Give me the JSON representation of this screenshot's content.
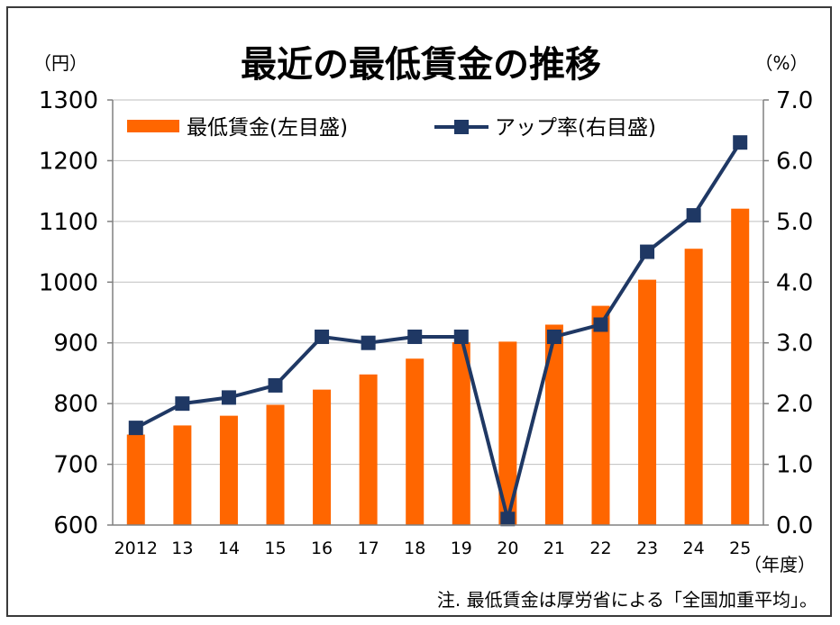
{
  "chart_data": {
    "type": "bar+line",
    "title": "最近の最低賃金の推移",
    "y_left_unit": "（円）",
    "y_right_unit": "（%）",
    "x_unit": "（年度）",
    "note": "注. 最低賃金は厚労省による「全国加重平均」。",
    "categories": [
      "2012",
      "13",
      "14",
      "15",
      "16",
      "17",
      "18",
      "19",
      "20",
      "21",
      "22",
      "23",
      "24",
      "25"
    ],
    "y_left_ticks": [
      "600",
      "700",
      "800",
      "900",
      "1000",
      "1100",
      "1200",
      "1300"
    ],
    "y_right_ticks": [
      "0.0",
      "1.0",
      "2.0",
      "3.0",
      "4.0",
      "5.0",
      "6.0",
      "7.0"
    ],
    "y_left_range": [
      600,
      1300
    ],
    "y_right_range": [
      0,
      7
    ],
    "legend_position": "top",
    "series": [
      {
        "name": "最低賃金(左目盛)",
        "type": "bar",
        "axis": "left",
        "color": "#ff6600",
        "values": [
          749,
          764,
          780,
          798,
          823,
          848,
          874,
          901,
          902,
          930,
          961,
          1004,
          1055,
          1121
        ]
      },
      {
        "name": "アップ率(右目盛)",
        "type": "line",
        "axis": "right",
        "color": "#1f3864",
        "values": [
          1.6,
          2.0,
          2.1,
          2.3,
          3.1,
          3.0,
          3.1,
          3.1,
          0.1,
          3.1,
          3.3,
          4.5,
          5.1,
          6.3
        ]
      }
    ]
  }
}
